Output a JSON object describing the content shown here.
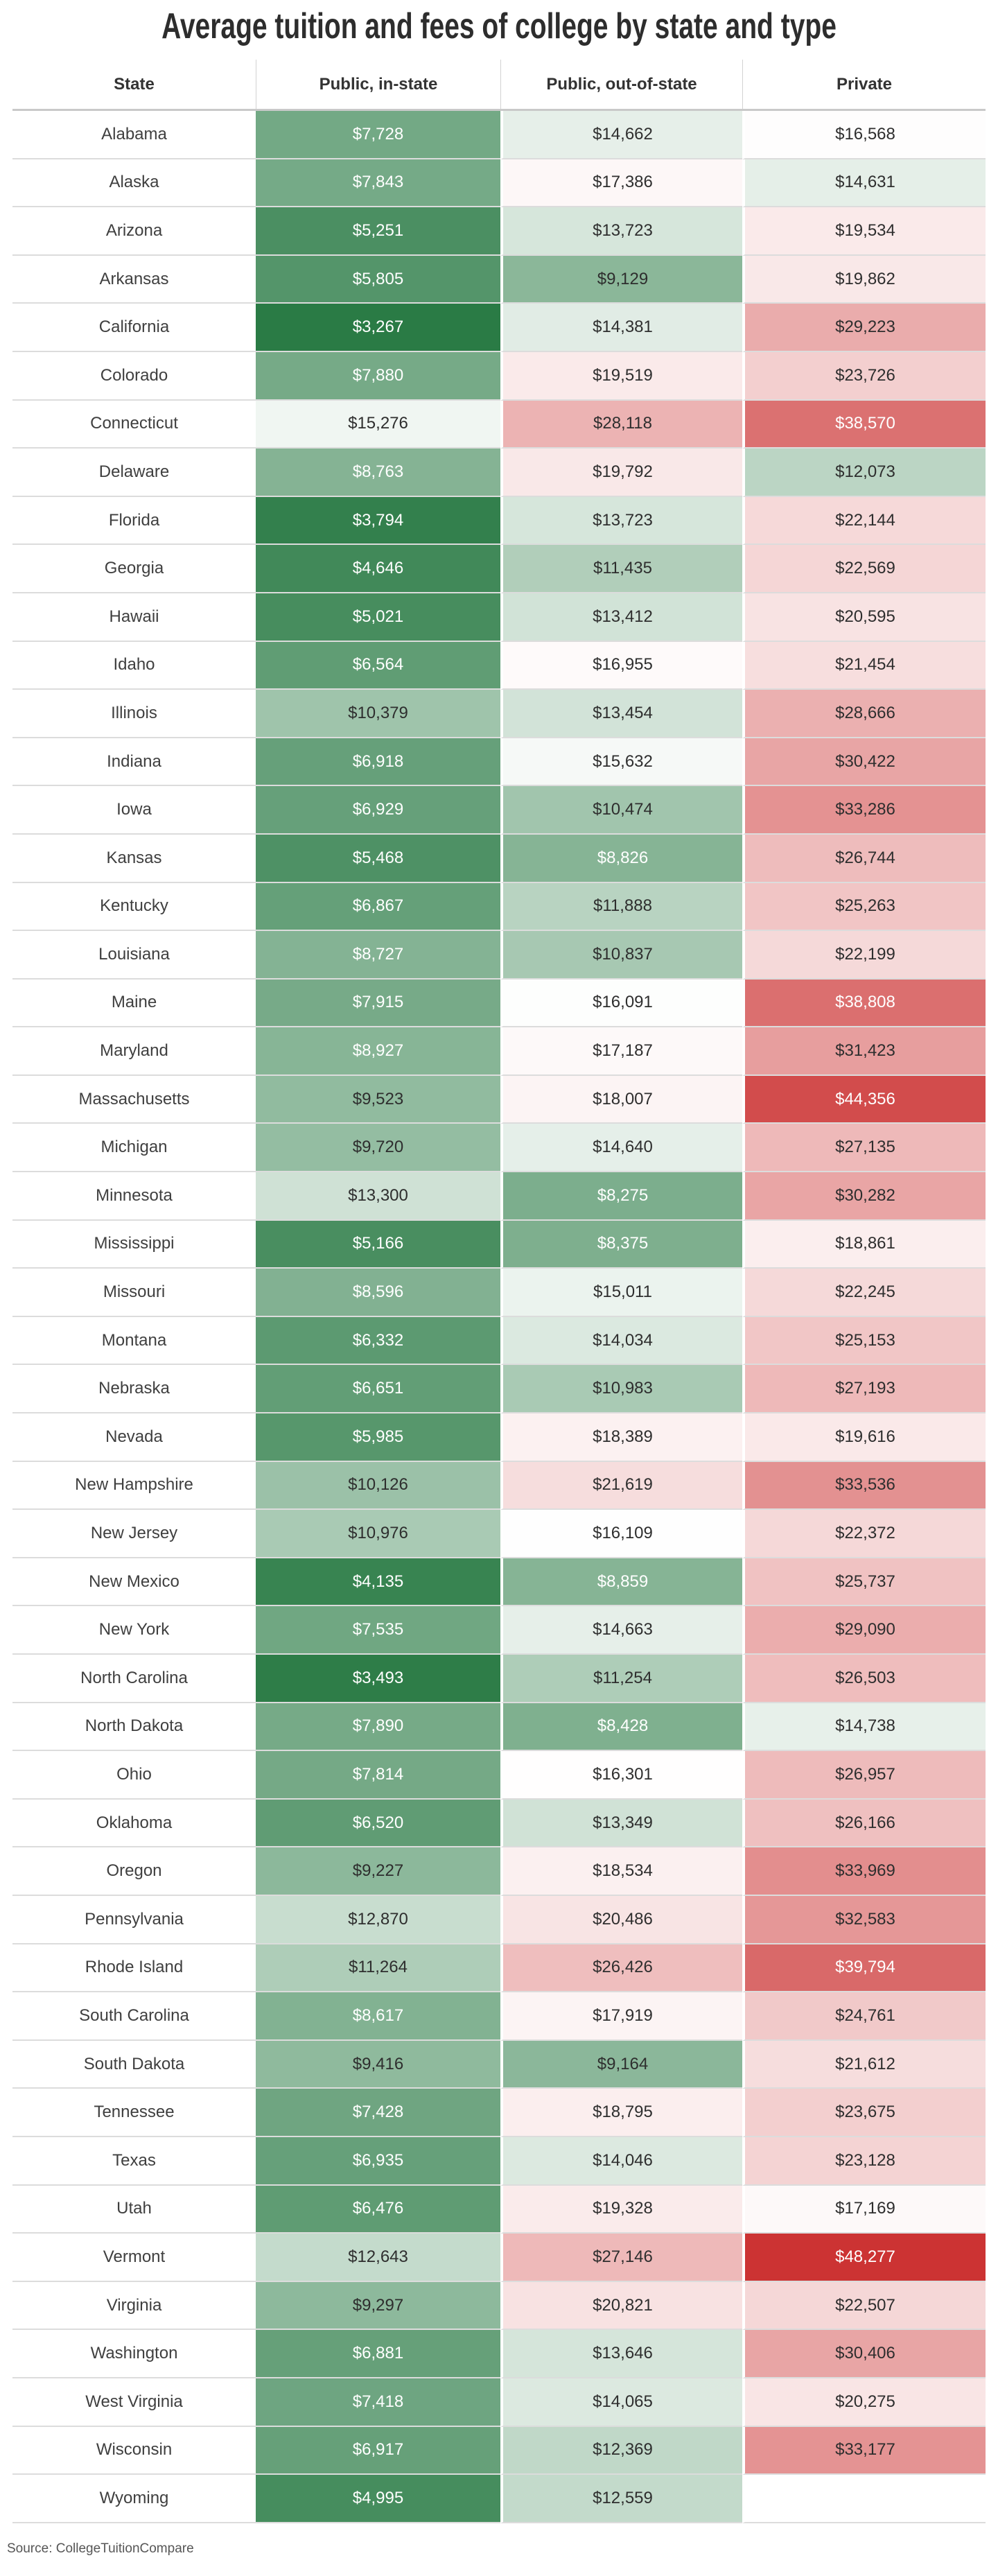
{
  "title": "Average tuition and fees of college by state and type",
  "source": "Source: CollegeTuitionCompare",
  "chart_data": {
    "type": "table",
    "subtype": "heatmap-table",
    "columns": [
      "State",
      "Public, in-state",
      "Public, out-of-state",
      "Private"
    ],
    "value_format": "$#,###",
    "color_scale": {
      "type": "diverging",
      "min_value": 3267,
      "mid_value": 16200,
      "max_value": 48277,
      "min_color": "#2a7b45",
      "mid_color": "#ffffff",
      "max_color": "#cc3333",
      "dark_text_color": "#2e2e2e",
      "light_text_color": "#ffffff"
    },
    "rows": [
      {
        "state": "Alabama",
        "inState": 7728,
        "outState": 14662,
        "private": 16568
      },
      {
        "state": "Alaska",
        "inState": 7843,
        "outState": 17386,
        "private": 14631
      },
      {
        "state": "Arizona",
        "inState": 5251,
        "outState": 13723,
        "private": 19534
      },
      {
        "state": "Arkansas",
        "inState": 5805,
        "outState": 9129,
        "private": 19862
      },
      {
        "state": "California",
        "inState": 3267,
        "outState": 14381,
        "private": 29223
      },
      {
        "state": "Colorado",
        "inState": 7880,
        "outState": 19519,
        "private": 23726
      },
      {
        "state": "Connecticut",
        "inState": 15276,
        "outState": 28118,
        "private": 38570
      },
      {
        "state": "Delaware",
        "inState": 8763,
        "outState": 19792,
        "private": 12073
      },
      {
        "state": "Florida",
        "inState": 3794,
        "outState": 13723,
        "private": 22144
      },
      {
        "state": "Georgia",
        "inState": 4646,
        "outState": 11435,
        "private": 22569
      },
      {
        "state": "Hawaii",
        "inState": 5021,
        "outState": 13412,
        "private": 20595
      },
      {
        "state": "Idaho",
        "inState": 6564,
        "outState": 16955,
        "private": 21454
      },
      {
        "state": "Illinois",
        "inState": 10379,
        "outState": 13454,
        "private": 28666
      },
      {
        "state": "Indiana",
        "inState": 6918,
        "outState": 15632,
        "private": 30422
      },
      {
        "state": "Iowa",
        "inState": 6929,
        "outState": 10474,
        "private": 33286
      },
      {
        "state": "Kansas",
        "inState": 5468,
        "outState": 8826,
        "private": 26744
      },
      {
        "state": "Kentucky",
        "inState": 6867,
        "outState": 11888,
        "private": 25263
      },
      {
        "state": "Louisiana",
        "inState": 8727,
        "outState": 10837,
        "private": 22199
      },
      {
        "state": "Maine",
        "inState": 7915,
        "outState": 16091,
        "private": 38808
      },
      {
        "state": "Maryland",
        "inState": 8927,
        "outState": 17187,
        "private": 31423
      },
      {
        "state": "Massachusetts",
        "inState": 9523,
        "outState": 18007,
        "private": 44356
      },
      {
        "state": "Michigan",
        "inState": 9720,
        "outState": 14640,
        "private": 27135
      },
      {
        "state": "Minnesota",
        "inState": 13300,
        "outState": 8275,
        "private": 30282
      },
      {
        "state": "Mississippi",
        "inState": 5166,
        "outState": 8375,
        "private": 18861
      },
      {
        "state": "Missouri",
        "inState": 8596,
        "outState": 15011,
        "private": 22245
      },
      {
        "state": "Montana",
        "inState": 6332,
        "outState": 14034,
        "private": 25153
      },
      {
        "state": "Nebraska",
        "inState": 6651,
        "outState": 10983,
        "private": 27193
      },
      {
        "state": "Nevada",
        "inState": 5985,
        "outState": 18389,
        "private": 19616
      },
      {
        "state": "New Hampshire",
        "inState": 10126,
        "outState": 21619,
        "private": 33536
      },
      {
        "state": "New Jersey",
        "inState": 10976,
        "outState": 16109,
        "private": 22372
      },
      {
        "state": "New Mexico",
        "inState": 4135,
        "outState": 8859,
        "private": 25737
      },
      {
        "state": "New York",
        "inState": 7535,
        "outState": 14663,
        "private": 29090
      },
      {
        "state": "North Carolina",
        "inState": 3493,
        "outState": 11254,
        "private": 26503
      },
      {
        "state": "North Dakota",
        "inState": 7890,
        "outState": 8428,
        "private": 14738
      },
      {
        "state": "Ohio",
        "inState": 7814,
        "outState": 16301,
        "private": 26957
      },
      {
        "state": "Oklahoma",
        "inState": 6520,
        "outState": 13349,
        "private": 26166
      },
      {
        "state": "Oregon",
        "inState": 9227,
        "outState": 18534,
        "private": 33969
      },
      {
        "state": "Pennsylvania",
        "inState": 12870,
        "outState": 20486,
        "private": 32583
      },
      {
        "state": "Rhode Island",
        "inState": 11264,
        "outState": 26426,
        "private": 39794
      },
      {
        "state": "South Carolina",
        "inState": 8617,
        "outState": 17919,
        "private": 24761
      },
      {
        "state": "South Dakota",
        "inState": 9416,
        "outState": 9164,
        "private": 21612
      },
      {
        "state": "Tennessee",
        "inState": 7428,
        "outState": 18795,
        "private": 23675
      },
      {
        "state": "Texas",
        "inState": 6935,
        "outState": 14046,
        "private": 23128
      },
      {
        "state": "Utah",
        "inState": 6476,
        "outState": 19328,
        "private": 17169
      },
      {
        "state": "Vermont",
        "inState": 12643,
        "outState": 27146,
        "private": 48277
      },
      {
        "state": "Virginia",
        "inState": 9297,
        "outState": 20821,
        "private": 22507
      },
      {
        "state": "Washington",
        "inState": 6881,
        "outState": 13646,
        "private": 30406
      },
      {
        "state": "West Virginia",
        "inState": 7418,
        "outState": 14065,
        "private": 20275
      },
      {
        "state": "Wisconsin",
        "inState": 6917,
        "outState": 12369,
        "private": 33177
      },
      {
        "state": "Wyoming",
        "inState": 4995,
        "outState": 12559,
        "private": null
      }
    ]
  }
}
